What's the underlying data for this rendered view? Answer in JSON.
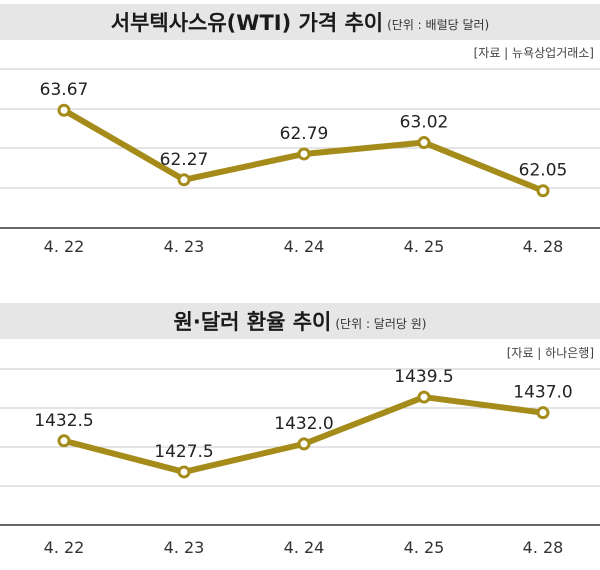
{
  "charts": [
    {
      "title": "서부텍사스유(WTI) 가격 추이",
      "unit": "(단위 : 배럴당 달러)",
      "source": "[자료 | 뉴욕상업거래소]"
    },
    {
      "title": "원·달러 환율 추이",
      "unit": "(단위 : 달러당 원)",
      "source": "[자료 | 하나은행]"
    }
  ],
  "chart_data": [
    {
      "type": "line",
      "title": "서부텍사스유(WTI) 가격 추이",
      "unit": "(단위 : 배럴당 달러)",
      "categories": [
        "4. 22",
        "4. 23",
        "4. 24",
        "4. 25",
        "4. 28"
      ],
      "values": [
        63.67,
        62.27,
        62.79,
        63.02,
        62.05
      ],
      "value_labels": [
        "63.67",
        "62.27",
        "62.79",
        "63.02",
        "62.05"
      ],
      "ylim": [
        61.3,
        64.5
      ],
      "line_color": "#a58c1a",
      "grid": true
    },
    {
      "type": "line",
      "title": "원·달러 환율 추이",
      "unit": "(단위 : 달러당 원)",
      "categories": [
        "4. 22",
        "4. 23",
        "4. 24",
        "4. 25",
        "4. 28"
      ],
      "values": [
        1432.5,
        1427.5,
        1432.0,
        1439.5,
        1437.0
      ],
      "value_labels": [
        "1432.5",
        "1427.5",
        "1432.0",
        "1439.5",
        "1437.0"
      ],
      "ylim": [
        1419,
        1444
      ],
      "line_color": "#a58c1a",
      "grid": true
    }
  ]
}
